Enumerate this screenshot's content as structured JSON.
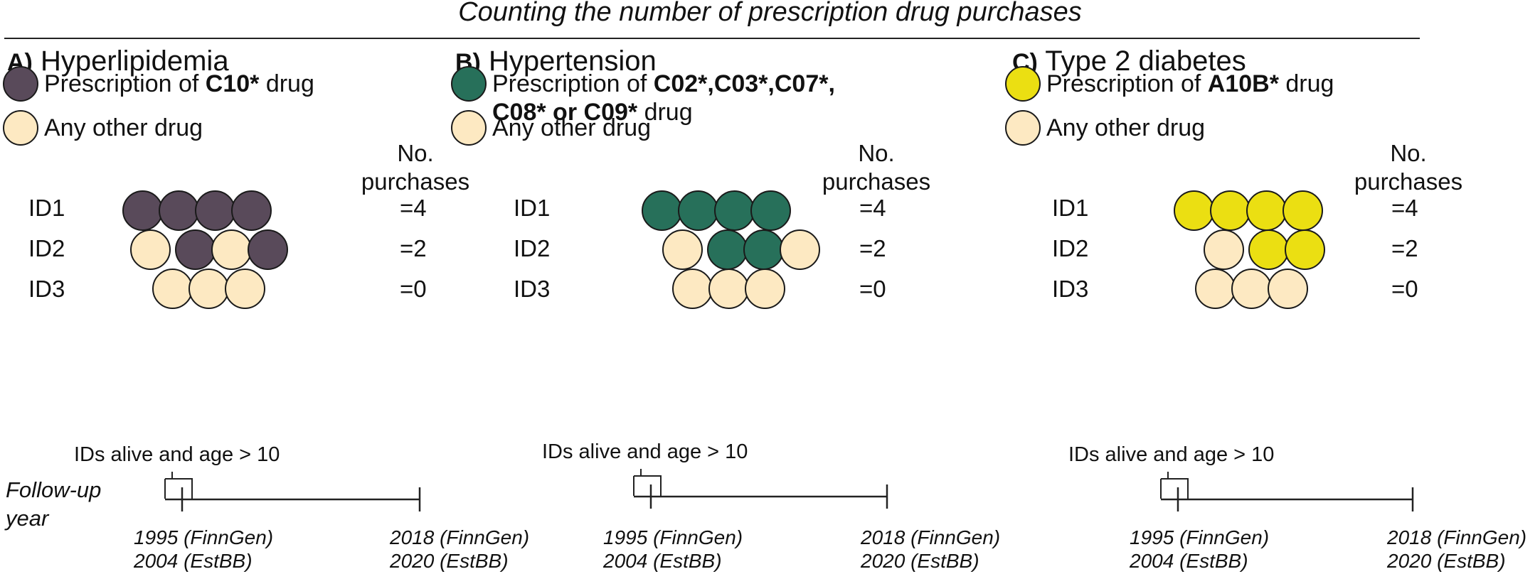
{
  "title": "Counting the number of prescription drug purchases",
  "colors": {
    "hyperlipidemia": "#594a5a",
    "hypertension": "#27705a",
    "diabetes": "#ebdf12",
    "other": "#fde9c2",
    "outline": "#1a1a1a"
  },
  "panels": [
    {
      "letter": "A)",
      "name": "Hyperlipidemia",
      "target_legend_prefix": "Prescription of ",
      "target_legend_codes": "C10*",
      "target_legend_suffix": " drug",
      "other_legend": "Any other drug",
      "count_header_line1": "No.",
      "count_header_line2": "purchases",
      "rows": [
        {
          "id": "ID1",
          "dots": [
            "t",
            "t",
            "t",
            "t"
          ],
          "count": "=4"
        },
        {
          "id": "ID2",
          "dots": [
            "o",
            "gap",
            "t",
            "o",
            "t"
          ],
          "count": "=2"
        },
        {
          "id": "ID3",
          "dots": [
            "o",
            "o",
            "o"
          ],
          "count": "=0"
        }
      ],
      "alive_label": "IDs alive and age > 10",
      "start_label_1": "1995 (FinnGen)",
      "start_label_2": "2004 (EstBB)",
      "end_label_1": "2018 (FinnGen)",
      "end_label_2": "2020 (EstBB)"
    },
    {
      "letter": "B)",
      "name": "Hypertension",
      "target_legend_prefix": "Prescription of ",
      "target_legend_codes": "C02*,C03*,C07*,",
      "target_legend_line2_codes_a": "C08*",
      "target_legend_line2_or": " or ",
      "target_legend_line2_codes_b": "C09*",
      "target_legend_suffix": " drug",
      "other_legend": "Any other drug",
      "count_header_line1": "No.",
      "count_header_line2": "purchases",
      "rows": [
        {
          "id": "ID1",
          "dots": [
            "t",
            "t",
            "t",
            "t"
          ],
          "count": "=4"
        },
        {
          "id": "ID2",
          "dots": [
            "o",
            "gap",
            "t",
            "t",
            "o"
          ],
          "count": "=2"
        },
        {
          "id": "ID3",
          "dots": [
            "o",
            "o",
            "o"
          ],
          "count": "=0"
        }
      ],
      "alive_label": "IDs alive and age > 10",
      "start_label_1": "1995 (FinnGen)",
      "start_label_2": "2004 (EstBB)",
      "end_label_1": "2018 (FinnGen)",
      "end_label_2": "2020 (EstBB)"
    },
    {
      "letter": "C)",
      "name": "Type 2 diabetes",
      "target_legend_prefix": "Prescription of ",
      "target_legend_codes": "A10B*",
      "target_legend_suffix": " drug",
      "other_legend": "Any other drug",
      "count_header_line1": "No.",
      "count_header_line2": "purchases",
      "rows": [
        {
          "id": "ID1",
          "dots": [
            "t",
            "t",
            "t",
            "t"
          ],
          "count": "=4"
        },
        {
          "id": "ID2",
          "dots": [
            "o",
            "gap",
            "t",
            "t"
          ],
          "count": "=2"
        },
        {
          "id": "ID3",
          "dots": [
            "o",
            "o",
            "o"
          ],
          "count": "=0"
        }
      ],
      "alive_label": "IDs alive and age > 10",
      "start_label_1": "1995 (FinnGen)",
      "start_label_2": "2004 (EstBB)",
      "end_label_1": "2018 (FinnGen)",
      "end_label_2": "2020 (EstBB)"
    }
  ],
  "followup_line1": "Follow-up",
  "followup_line2": "year"
}
